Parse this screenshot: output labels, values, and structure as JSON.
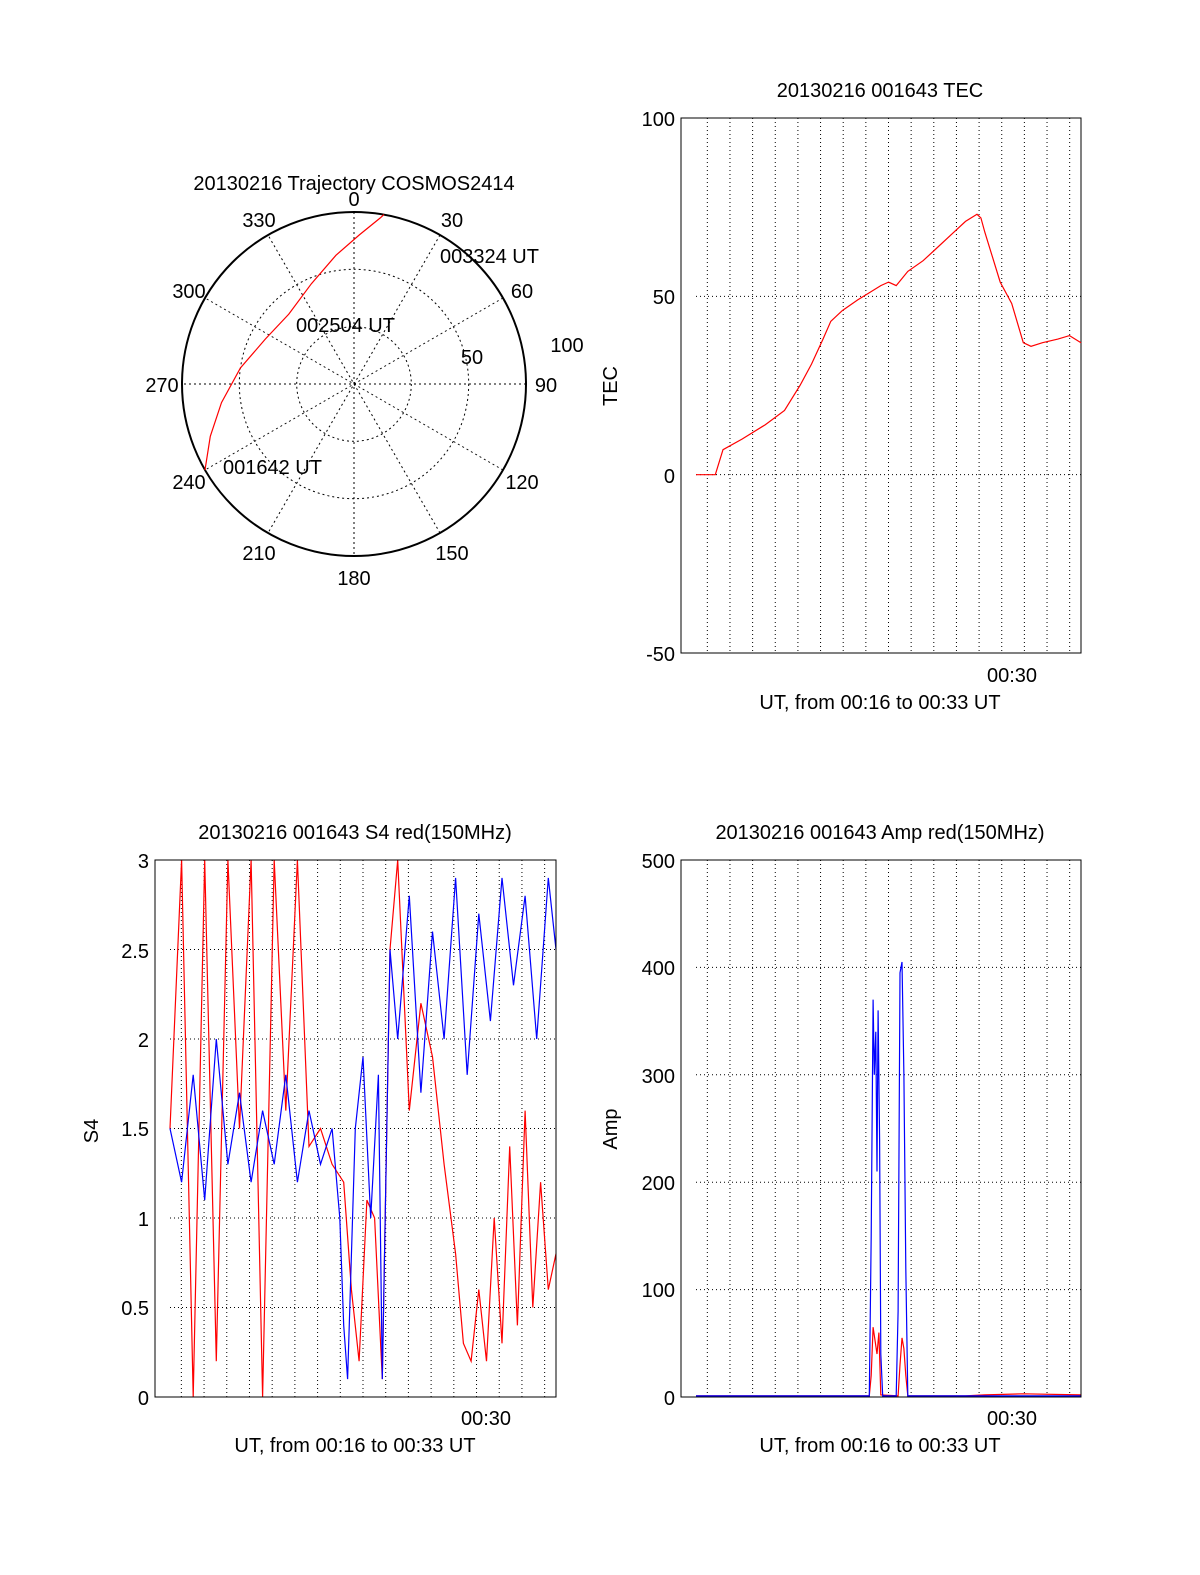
{
  "chart_data": [
    {
      "type": "polar",
      "title": "20130216 Trajectory COSMOS2414",
      "azimuth_labels": [
        "0",
        "30",
        "60",
        "90",
        "120",
        "150",
        "180",
        "210",
        "240",
        "270",
        "300",
        "330"
      ],
      "radial_labels": [
        "50",
        "100"
      ],
      "time_labels": [
        "003324 UT",
        "002504 UT",
        "001642 UT"
      ],
      "trajectory": {
        "color": "#ff0000",
        "points": [
          {
            "az": 240,
            "el": 0
          },
          {
            "az": 250,
            "el": 10
          },
          {
            "az": 262,
            "el": 20
          },
          {
            "az": 278,
            "el": 30
          },
          {
            "az": 297,
            "el": 38
          },
          {
            "az": 317,
            "el": 40
          },
          {
            "az": 337,
            "el": 33
          },
          {
            "az": 352,
            "el": 22
          },
          {
            "az": 2,
            "el": 12
          },
          {
            "az": 9,
            "el": 2
          },
          {
            "az": 10,
            "el": 0
          }
        ]
      }
    },
    {
      "type": "line",
      "title": "20130216 001643 TEC",
      "ylabel": "TEC",
      "xlabel": "UT, from 00:16 to 00:33 UT",
      "xtick_label": "00:30",
      "ylim": [
        -50,
        100
      ],
      "yticks": [
        "-50",
        "0",
        "50",
        "100"
      ],
      "grid": true,
      "series": [
        {
          "color": "#ff0000",
          "x": [
            0.0,
            0.05,
            0.07,
            0.12,
            0.18,
            0.23,
            0.27,
            0.3,
            0.33,
            0.35,
            0.38,
            0.42,
            0.45,
            0.48,
            0.5,
            0.52,
            0.55,
            0.59,
            0.62,
            0.66,
            0.7,
            0.73,
            0.74,
            0.75,
            0.77,
            0.79,
            0.82,
            0.85,
            0.87,
            0.9,
            0.94,
            0.97,
            1.0
          ],
          "y": [
            0,
            0,
            7,
            10,
            14,
            18,
            25,
            31,
            38,
            43,
            46,
            49,
            51,
            53,
            54,
            53,
            57,
            60,
            63,
            67,
            71,
            73,
            72,
            68,
            61,
            54,
            48,
            37,
            36,
            37,
            38,
            39,
            37
          ]
        }
      ]
    },
    {
      "type": "line",
      "title": "20130216 001643 S4 red(150MHz)",
      "ylabel": "S4",
      "xlabel": "UT, from 00:16 to 00:33 UT",
      "xtick_label": "00:30",
      "ylim": [
        0,
        3
      ],
      "yticks": [
        "0",
        "0.5",
        "1",
        "1.5",
        "2",
        "2.5",
        "3"
      ],
      "grid": true,
      "series": [
        {
          "color": "#ff0000",
          "x": [
            0.0,
            0.03,
            0.06,
            0.09,
            0.12,
            0.15,
            0.18,
            0.21,
            0.24,
            0.27,
            0.3,
            0.33,
            0.36,
            0.39,
            0.42,
            0.45,
            0.47,
            0.49,
            0.51,
            0.53,
            0.55,
            0.57,
            0.59,
            0.62,
            0.65,
            0.68,
            0.71,
            0.74,
            0.76,
            0.78,
            0.8,
            0.82,
            0.84,
            0.86,
            0.88,
            0.9,
            0.92,
            0.94,
            0.96,
            0.98,
            1.0
          ],
          "y": [
            1.5,
            3.0,
            0.0,
            3.0,
            0.2,
            3.0,
            1.5,
            3.0,
            0.0,
            3.0,
            1.6,
            3.0,
            1.4,
            1.5,
            1.3,
            1.2,
            0.6,
            0.2,
            1.1,
            1.0,
            0.1,
            2.5,
            3.0,
            1.6,
            2.2,
            1.9,
            1.3,
            0.8,
            0.3,
            0.2,
            0.6,
            0.2,
            1.0,
            0.3,
            1.4,
            0.4,
            1.6,
            0.5,
            1.2,
            0.6,
            0.8
          ]
        },
        {
          "color": "#0000ff",
          "x": [
            0.0,
            0.03,
            0.06,
            0.09,
            0.12,
            0.15,
            0.18,
            0.21,
            0.24,
            0.27,
            0.3,
            0.33,
            0.36,
            0.39,
            0.42,
            0.44,
            0.45,
            0.46,
            0.48,
            0.5,
            0.52,
            0.54,
            0.55,
            0.57,
            0.59,
            0.62,
            0.65,
            0.68,
            0.71,
            0.74,
            0.77,
            0.8,
            0.83,
            0.86,
            0.89,
            0.92,
            0.95,
            0.98,
            1.0
          ],
          "y": [
            1.5,
            1.2,
            1.8,
            1.1,
            2.0,
            1.3,
            1.7,
            1.2,
            1.6,
            1.3,
            1.8,
            1.2,
            1.6,
            1.3,
            1.5,
            1.0,
            0.4,
            0.1,
            1.5,
            1.9,
            1.0,
            1.8,
            0.1,
            2.5,
            2.0,
            2.8,
            1.7,
            2.6,
            2.0,
            2.9,
            1.8,
            2.7,
            2.1,
            2.9,
            2.3,
            2.8,
            2.0,
            2.9,
            2.5
          ]
        }
      ]
    },
    {
      "type": "line",
      "title": "20130216 001643 Amp red(150MHz)",
      "ylabel": "Amp",
      "xlabel": "UT, from 00:16 to 00:33 UT",
      "xtick_label": "00:30",
      "ylim": [
        0,
        500
      ],
      "yticks": [
        "0",
        "100",
        "200",
        "300",
        "400",
        "500"
      ],
      "grid": true,
      "series": [
        {
          "color": "#ff0000",
          "x": [
            0.0,
            0.45,
            0.455,
            0.46,
            0.47,
            0.475,
            0.48,
            0.525,
            0.53,
            0.535,
            0.54,
            0.545,
            0.55,
            0.7,
            0.75,
            0.85,
            1.0
          ],
          "y": [
            1,
            1,
            20,
            65,
            40,
            60,
            2,
            1,
            30,
            55,
            45,
            20,
            1,
            1,
            2,
            3,
            2
          ]
        },
        {
          "color": "#0000ff",
          "x": [
            0.0,
            0.3,
            0.45,
            0.455,
            0.46,
            0.463,
            0.467,
            0.47,
            0.473,
            0.477,
            0.48,
            0.485,
            0.52,
            0.525,
            0.53,
            0.535,
            0.54,
            0.545,
            0.55,
            0.7,
            0.85,
            1.0
          ],
          "y": [
            1,
            1,
            1,
            150,
            370,
            300,
            340,
            210,
            360,
            240,
            40,
            1,
            1,
            80,
            395,
            405,
            300,
            120,
            1,
            1,
            1,
            1
          ]
        }
      ]
    }
  ]
}
